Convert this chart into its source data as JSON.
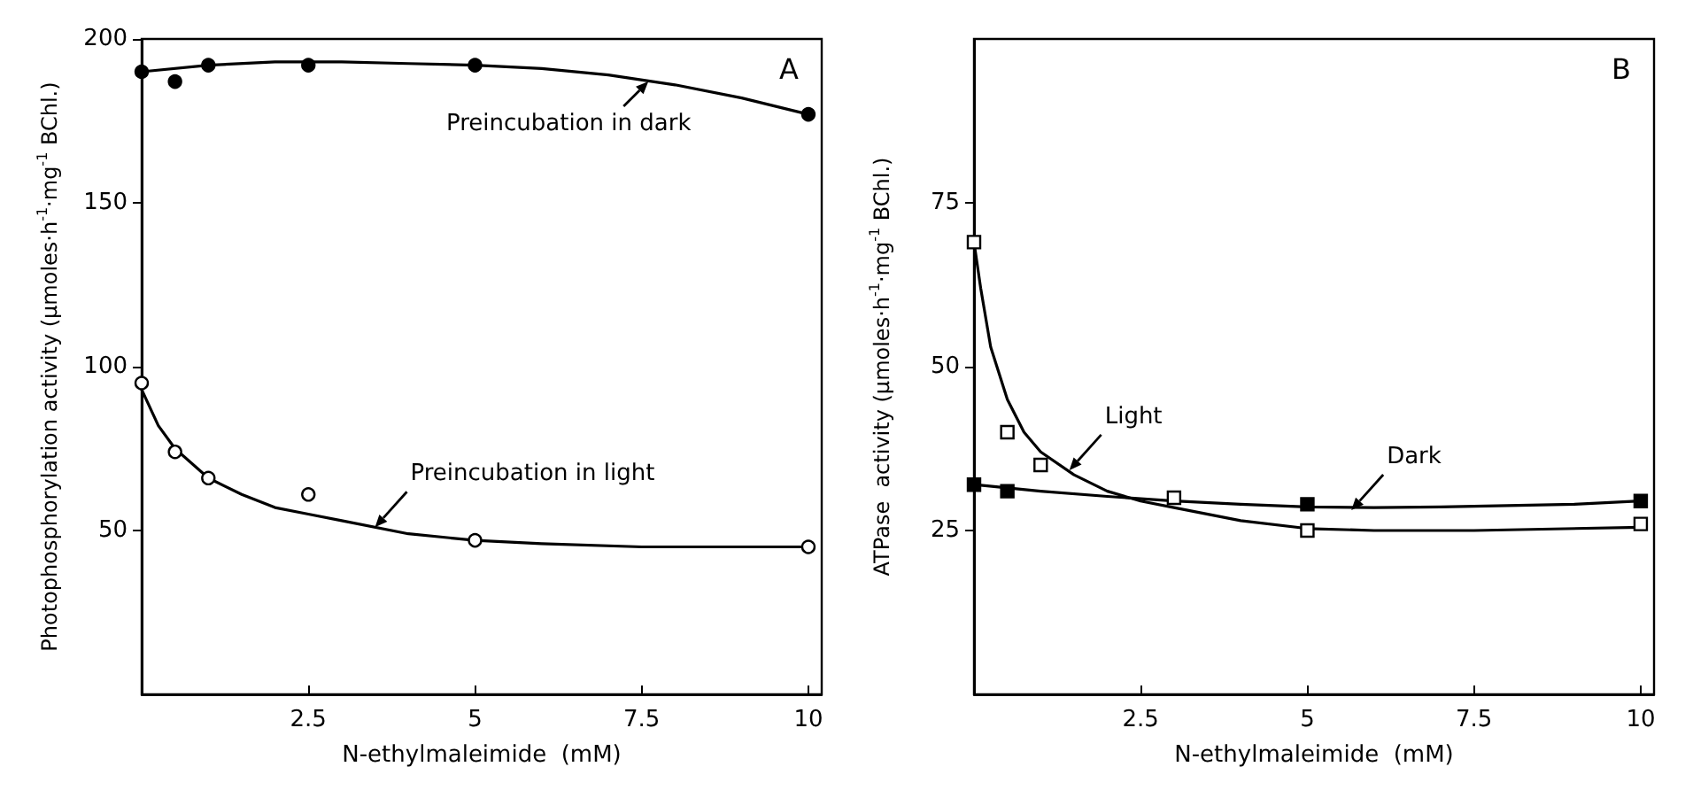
{
  "chart_data": [
    {
      "type": "scatter",
      "title": "A",
      "xlabel": "N-ethylmaleimide  (mM)",
      "ylabel": "Photophosphorylation activity (µmoles·h$^{-1}$·mg$^{-1}$ BChl.)",
      "xlim": [
        0,
        10.2
      ],
      "xticks": [
        2.5,
        5,
        7.5,
        10
      ],
      "ylim": [
        0,
        200
      ],
      "yticks": [
        50,
        100,
        150,
        200
      ],
      "grid": false,
      "x": [
        0,
        0.5,
        1,
        2.5,
        5,
        10
      ],
      "series": [
        {
          "marker": "circle",
          "color": "#000000",
          "values": [
            190,
            187,
            192,
            192,
            192,
            177
          ]
        },
        {
          "marker": "circle",
          "color": "#ffffff",
          "values": [
            95,
            74,
            66,
            61,
            47,
            45
          ]
        },
        {
          "type": "line",
          "marker": "none",
          "line_style": "solid",
          "color": "#000000",
          "x": [
            0,
            1,
            2,
            3,
            4,
            5,
            6,
            7,
            8,
            9,
            10
          ],
          "values": [
            190,
            192,
            193,
            193,
            192.5,
            192,
            191,
            189,
            186,
            182,
            177
          ]
        },
        {
          "type": "line",
          "marker": "none",
          "line_style": "solid",
          "color": "#000000",
          "x": [
            0,
            0.25,
            0.5,
            1,
            1.5,
            2,
            2.5,
            3,
            4,
            5,
            6,
            7.5,
            10
          ],
          "values": [
            93,
            82,
            75,
            66,
            61,
            57,
            55,
            53,
            49,
            47,
            46,
            45,
            45
          ]
        }
      ],
      "annotations": [
        {
          "text": "Preincubation in dark",
          "x": 7.6,
          "y": 187
        },
        {
          "text": "Preincubation in light",
          "x": 3.5,
          "y": 51
        }
      ]
    },
    {
      "type": "scatter",
      "title": "B",
      "xlabel": "N-ethylmaleimide  (mM)",
      "ylabel": "ATPase  activity (µmoles·h$^{-1}$·mg$^{-1}$ BChl.)",
      "xlim": [
        0,
        10.2
      ],
      "xticks": [
        2.5,
        5,
        7.5,
        10
      ],
      "ylim": [
        0,
        100
      ],
      "yticks": [
        25,
        50,
        75
      ],
      "grid": false,
      "x": [
        0,
        0.5,
        1,
        3,
        5,
        10
      ],
      "series": [
        {
          "marker": "square",
          "color": "#ffffff",
          "values": [
            69,
            40,
            35,
            30,
            25,
            26
          ]
        },
        {
          "marker": "square",
          "color": "#000000",
          "x": [
            0,
            0.5,
            5,
            10
          ],
          "values": [
            32,
            31,
            29,
            29.5
          ]
        },
        {
          "type": "line",
          "marker": "none",
          "line_style": "solid",
          "color": "#000000",
          "x": [
            0,
            0.1,
            0.25,
            0.5,
            0.75,
            1,
            1.5,
            2,
            2.5,
            3,
            4,
            5,
            6,
            7.5,
            10
          ],
          "values": [
            69,
            62,
            53,
            45,
            40,
            37,
            33.5,
            31,
            29.5,
            28.5,
            26.5,
            25.3,
            25,
            25,
            25.5
          ]
        },
        {
          "type": "line",
          "marker": "none",
          "line_style": "solid",
          "color": "#000000",
          "x": [
            0,
            1,
            2,
            3,
            4,
            5,
            6,
            7,
            8,
            9,
            10
          ],
          "values": [
            32,
            31,
            30.2,
            29.5,
            29,
            28.6,
            28.5,
            28.6,
            28.8,
            29,
            29.5
          ]
        }
      ],
      "annotations": [
        {
          "text": "Light",
          "x": 1.43,
          "y": 34.2
        },
        {
          "text": "Dark",
          "x": 5.66,
          "y": 28.1
        }
      ]
    }
  ]
}
